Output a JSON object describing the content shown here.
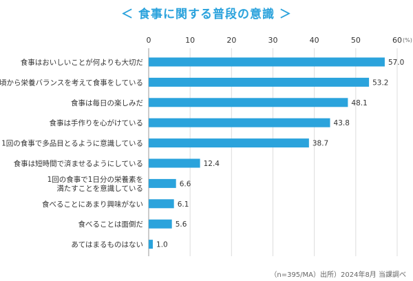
{
  "chart_data": {
    "type": "bar",
    "orientation": "horizontal",
    "title": "＜ 食事に関する普段の意識 ＞",
    "unit": "(%)",
    "source_note": "（n=395/MA）出所）2024年8月 当課調べ",
    "xlim": [
      0,
      60
    ],
    "ticks": [
      0,
      10,
      20,
      30,
      40,
      50,
      60
    ],
    "grid": true,
    "bar_color": "#2ba3dc",
    "categories": [
      [
        "食事はおいしいことが何よりも大切だ"
      ],
      [
        "日頃から栄養バランスを考えて食事をしている"
      ],
      [
        "食事は毎日の楽しみだ"
      ],
      [
        "食事は手作りを心がけている"
      ],
      [
        "1回の食事で多品目とるように意識している"
      ],
      [
        "食事は短時間で済ませるようにしている"
      ],
      [
        "1回の食事で1日分の栄養素を",
        "満たすことを意識している"
      ],
      [
        "食べることにあまり興味がない"
      ],
      [
        "食べることは面倒だ"
      ],
      [
        "あてはまるものはない"
      ]
    ],
    "values": [
      57.0,
      53.2,
      48.1,
      43.8,
      38.7,
      12.4,
      6.6,
      6.1,
      5.6,
      1.0
    ],
    "value_labels": [
      "57.0",
      "53.2",
      "48.1",
      "43.8",
      "38.7",
      "12.4",
      "6.6",
      "6.1",
      "5.6",
      "1.0"
    ]
  }
}
